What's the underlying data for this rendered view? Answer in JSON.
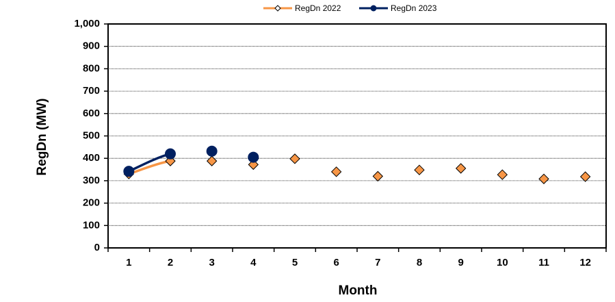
{
  "chart_data": {
    "type": "line",
    "x_label": "Month",
    "y_label": "RegDn (MW)",
    "categories": [
      "1",
      "2",
      "3",
      "4",
      "5",
      "6",
      "7",
      "8",
      "9",
      "10",
      "11",
      "12"
    ],
    "series": [
      {
        "name": "RegDn 2022",
        "color": "#f79646",
        "marker": "diamond",
        "values": [
          330,
          388,
          388,
          372,
          398,
          340,
          320,
          348,
          355,
          327,
          308,
          318
        ]
      },
      {
        "name": "RegDn 2023",
        "color": "#002060",
        "marker": "circle",
        "values": [
          342,
          420,
          432,
          405,
          null,
          null,
          null,
          null,
          null,
          null,
          null,
          null
        ]
      }
    ],
    "ylim": [
      0,
      1000
    ],
    "yticks": [
      0,
      100,
      200,
      300,
      400,
      500,
      600,
      700,
      800,
      900,
      {
        "value": 1000,
        "label": "1,000"
      }
    ],
    "grid": true,
    "legend": "top"
  }
}
